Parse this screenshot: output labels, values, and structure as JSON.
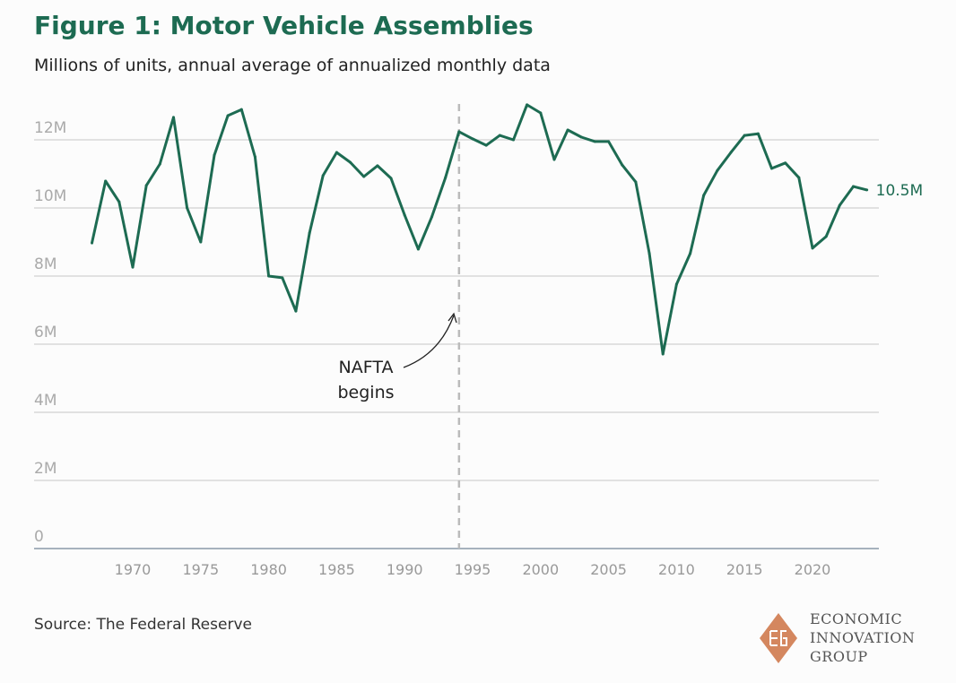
{
  "chart_data": {
    "type": "line",
    "title": "Figure 1: Motor Vehicle Assemblies",
    "subtitle": "Millions of units, annual average of annualized monthly data",
    "xlabel": "",
    "ylabel": "",
    "ylim": [
      0,
      13
    ],
    "y_ticks": [
      0,
      2,
      4,
      6,
      8,
      10,
      12
    ],
    "y_tick_labels": [
      "0",
      "2M",
      "4M",
      "6M",
      "8M",
      "10M",
      "12M"
    ],
    "x_ticks": [
      1970,
      1975,
      1980,
      1985,
      1990,
      1995,
      2000,
      2005,
      2010,
      2015,
      2020
    ],
    "x_tick_labels": [
      "1970",
      "1975",
      "1980",
      "1985",
      "1990",
      "1995",
      "2000",
      "2005",
      "2010",
      "2015",
      "2020"
    ],
    "grid": true,
    "series": [
      {
        "name": "Motor vehicle assemblies",
        "color": "#1d6b52",
        "x": [
          1967,
          1968,
          1969,
          1970,
          1971,
          1972,
          1973,
          1974,
          1975,
          1976,
          1977,
          1978,
          1979,
          1980,
          1981,
          1982,
          1983,
          1984,
          1985,
          1986,
          1987,
          1988,
          1989,
          1990,
          1991,
          1992,
          1993,
          1994,
          1995,
          1996,
          1997,
          1998,
          1999,
          2000,
          2001,
          2002,
          2003,
          2004,
          2005,
          2006,
          2007,
          2008,
          2009,
          2010,
          2011,
          2012,
          2013,
          2014,
          2015,
          2016,
          2017,
          2018,
          2019,
          2020,
          2021,
          2022,
          2023,
          2024
        ],
        "values": [
          8.97,
          10.79,
          10.18,
          8.26,
          10.66,
          11.29,
          12.66,
          10.0,
          9.0,
          11.55,
          12.71,
          12.89,
          11.5,
          8.0,
          7.95,
          6.97,
          9.26,
          10.95,
          11.63,
          11.34,
          10.92,
          11.24,
          10.87,
          9.79,
          8.79,
          9.74,
          10.89,
          12.24,
          12.03,
          11.84,
          12.13,
          12.0,
          13.03,
          12.79,
          11.42,
          12.29,
          12.08,
          11.95,
          11.95,
          11.26,
          10.76,
          8.66,
          5.71,
          7.76,
          8.66,
          10.37,
          11.1,
          11.63,
          12.13,
          12.18,
          11.16,
          11.32,
          10.89,
          8.82,
          9.16,
          10.08,
          10.63,
          10.53
        ]
      }
    ],
    "end_label": "10.5M",
    "annotations": [
      {
        "x": 1994,
        "text_lines": [
          "NAFTA",
          "begins"
        ]
      }
    ]
  },
  "source": "Source: The Federal Reserve",
  "logo": {
    "lines": [
      "ECONOMIC",
      "INNOVATION",
      "GROUP"
    ],
    "color": "#d4875f"
  }
}
